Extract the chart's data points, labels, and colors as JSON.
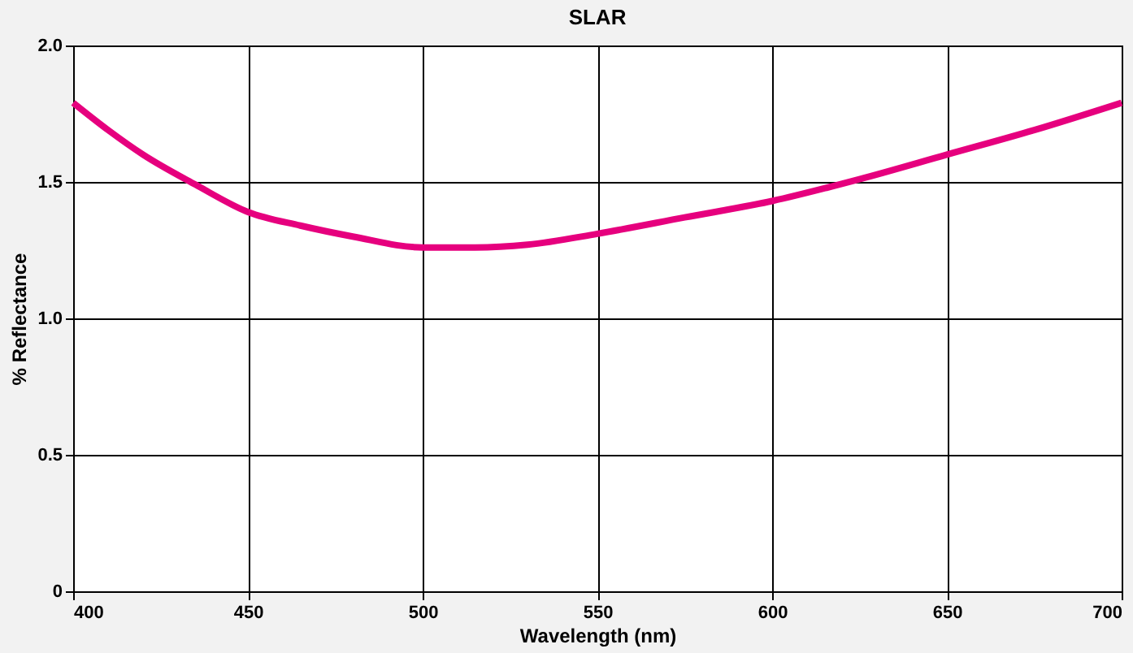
{
  "chart_data": {
    "type": "line",
    "title": "SLAR",
    "xlabel": "Wavelength (nm)",
    "ylabel": "% Reflectance",
    "x": [
      400,
      410,
      420,
      435,
      450,
      465,
      480,
      500,
      515,
      530,
      550,
      575,
      600,
      625,
      650,
      675,
      700
    ],
    "series": [
      {
        "color": "#e6007e",
        "values": [
          1.79,
          1.69,
          1.6,
          1.49,
          1.39,
          1.34,
          1.3,
          1.26,
          1.26,
          1.27,
          1.31,
          1.37,
          1.43,
          1.51,
          1.6,
          1.69,
          1.79
        ]
      }
    ],
    "xlim": [
      400,
      700
    ],
    "xticks": [
      400,
      450,
      500,
      550,
      600,
      650,
      700
    ],
    "ylim": [
      0,
      2.0
    ],
    "yticks": [
      0,
      {
        "value": 0.5,
        "label": "0.5"
      },
      {
        "value": 1.0,
        "label": "1.0"
      },
      {
        "value": 1.5,
        "label": "1.5"
      },
      {
        "value": 2.0,
        "label": "2.0"
      }
    ],
    "grid": true,
    "legend": false,
    "marker": "none",
    "line_style": "solid"
  }
}
